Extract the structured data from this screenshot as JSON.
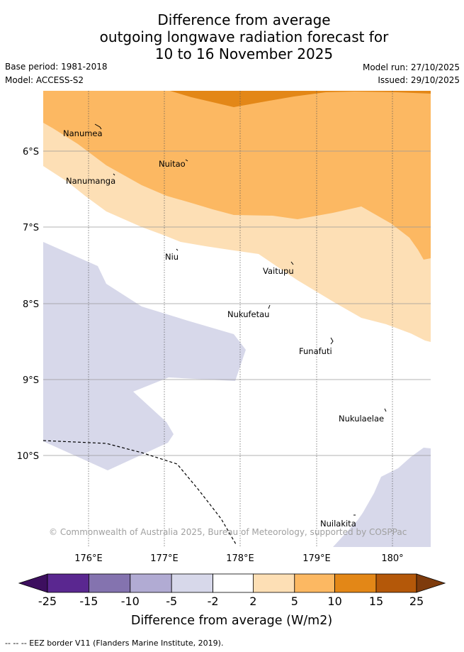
{
  "title": {
    "line1": "Difference from average",
    "line2": "outgoing longwave radiation forecast for",
    "line3": "10 to 16 November 2025"
  },
  "meta": {
    "base_period": "Base period: 1981-2018",
    "model": "Model: ACCESS-S2",
    "model_run": "Model run: 27/10/2025",
    "issued": "Issued: 29/10/2025"
  },
  "map": {
    "places": [
      {
        "name": "Nanumea",
        "lon": 176.17,
        "lat": -5.68
      },
      {
        "name": "Nuitao",
        "lon": 177.3,
        "lat": -6.13
      },
      {
        "name": "Nanumanga",
        "lon": 176.32,
        "lat": -6.3
      },
      {
        "name": "Niu",
        "lon": 177.17,
        "lat": -7.3
      },
      {
        "name": "Vaitupu",
        "lon": 178.68,
        "lat": -7.47
      },
      {
        "name": "Nukufetau",
        "lon": 178.39,
        "lat": -8.03
      },
      {
        "name": "Funafuti",
        "lon": 179.2,
        "lat": -8.5
      },
      {
        "name": "Nukulaelae",
        "lon": 179.86,
        "lat": -9.38
      },
      {
        "name": "Nuilakita",
        "lon": 179.5,
        "lat": -10.77
      }
    ],
    "lat_ticks": [
      "6°S",
      "7°S",
      "8°S",
      "9°S",
      "10°S"
    ],
    "lon_ticks": [
      "176°E",
      "177°E",
      "178°E",
      "179°E",
      "180°"
    ],
    "copyright": "© Commonwealth of Australia 2025, Bureau of Meteorology, supported by COSPPac",
    "colors": {
      "neg_small": "#d7d8ea",
      "pos_small": "#fddfb5",
      "pos_med": "#fcb862",
      "pos_large": "#e38717"
    }
  },
  "colorbar": {
    "ticks": [
      "-25",
      "-15",
      "-10",
      "-5",
      "-2",
      "2",
      "5",
      "10",
      "15",
      "25"
    ],
    "colors": [
      "#3d0f5f",
      "#5a2790",
      "#8473af",
      "#b1abd3",
      "#d7d8ea",
      "#ffffff",
      "#fddfb5",
      "#fcb862",
      "#e38717",
      "#b45809",
      "#7e3b0c"
    ],
    "label": "Difference from average (W/m2)"
  },
  "legend": {
    "eez": "-- -- -- EEZ border V11 (Flanders Marine Institute, 2019)."
  }
}
